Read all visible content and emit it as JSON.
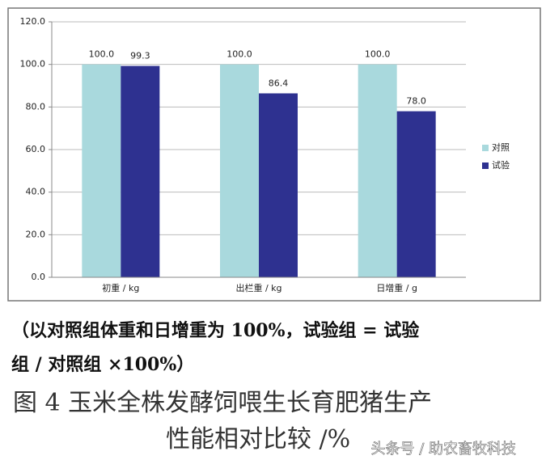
{
  "chart_data": {
    "type": "bar",
    "categories": [
      "初重 / kg",
      "出栏重 / kg",
      "日增重 / g"
    ],
    "series": [
      {
        "name": "对照",
        "color": "#a9d9dd",
        "values": [
          100,
          100,
          100
        ],
        "value_labels": [
          "100.0",
          "100.0",
          "100.0"
        ]
      },
      {
        "name": "试验",
        "color": "#2e3190",
        "values": [
          99.3,
          86.4,
          78
        ],
        "value_labels": [
          "99.3",
          "86.4",
          "78.0"
        ]
      }
    ],
    "ylim": [
      0,
      120
    ],
    "yticks": [
      {
        "value": 0,
        "label": "0.0"
      },
      {
        "value": 20,
        "label": "20.0"
      },
      {
        "value": 40,
        "label": "40.0"
      },
      {
        "value": 60,
        "label": "60.0"
      },
      {
        "value": 80,
        "label": "80.0"
      },
      {
        "value": 100,
        "label": "100.0"
      },
      {
        "value": 120,
        "label": "120.0"
      }
    ],
    "grid": true,
    "legend": "right"
  },
  "note_lines": [
    "（以对照组体重和日增重为 100%，试验组 = 试验",
    "组 / 对照组 ×100%）"
  ],
  "caption_lines": [
    "图 4  玉米全株发酵饲喂生长育肥猪生产",
    "性能相对比较 /%"
  ],
  "watermark": "头条号 / 助农畜牧科技"
}
